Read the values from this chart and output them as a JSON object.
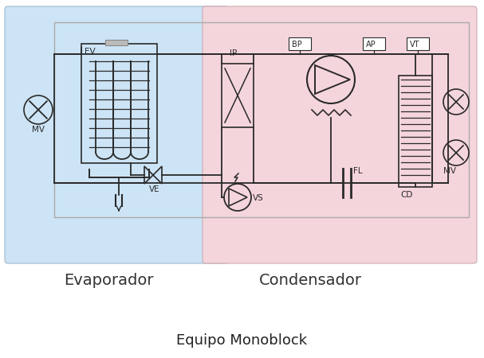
{
  "title": "Equipo Monoblock",
  "label_evaporador": "Evaporador",
  "label_condensador": "Condensador",
  "bg_color": "#ffffff",
  "evap_bg": "#cce4f5",
  "cond_bg": "#f5d5dc",
  "line_color": "#2a2a2a",
  "lw": 1.3,
  "font_size_title": 13,
  "font_size_label": 14,
  "font_size_comp": 7.5
}
